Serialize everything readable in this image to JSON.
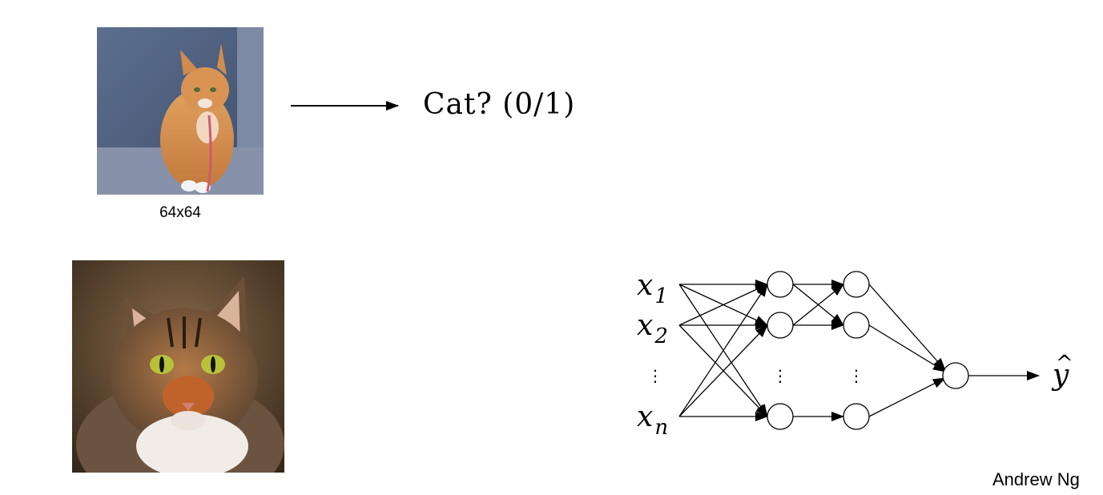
{
  "slide": {
    "small_image_caption": "64x64",
    "output_question": "Cat? (0/1)",
    "credit": "Andrew Ng"
  },
  "network": {
    "inputs": [
      {
        "base": "x",
        "sub": "1"
      },
      {
        "base": "x",
        "sub": "2"
      },
      {
        "base": "x",
        "sub": "n"
      }
    ],
    "output": {
      "base": "y",
      "hat": "^"
    },
    "ellipsis": "⋮"
  },
  "images": [
    {
      "name": "small-cat-photo",
      "depicts": "orange tabby cat sitting"
    },
    {
      "name": "large-cat-photo",
      "depicts": "tabby cat face close-up"
    }
  ]
}
